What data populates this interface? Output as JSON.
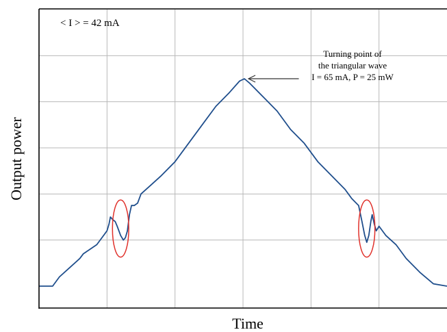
{
  "chart_data": {
    "type": "line",
    "title": "",
    "xlabel": "Time",
    "ylabel": "Output power",
    "xlim": [
      0,
      6
    ],
    "ylim": [
      0,
      6
    ],
    "grid": true,
    "grid_x": [
      1,
      2,
      3,
      4,
      5
    ],
    "grid_y": [
      1,
      2,
      3,
      4,
      5
    ],
    "series": [
      {
        "color": "#1f4e8c",
        "points": [
          [
            0.0,
            0.0
          ],
          [
            0.2,
            0.0
          ],
          [
            0.3,
            0.2
          ],
          [
            0.45,
            0.4
          ],
          [
            0.6,
            0.6
          ],
          [
            0.65,
            0.7
          ],
          [
            0.75,
            0.8
          ],
          [
            0.85,
            0.9
          ],
          [
            0.95,
            1.1
          ],
          [
            1.0,
            1.2
          ],
          [
            1.03,
            1.35
          ],
          [
            1.05,
            1.5
          ],
          [
            1.08,
            1.45
          ],
          [
            1.12,
            1.4
          ],
          [
            1.15,
            1.3
          ],
          [
            1.2,
            1.1
          ],
          [
            1.24,
            1.0
          ],
          [
            1.27,
            1.05
          ],
          [
            1.3,
            1.2
          ],
          [
            1.33,
            1.55
          ],
          [
            1.36,
            1.75
          ],
          [
            1.4,
            1.75
          ],
          [
            1.45,
            1.8
          ],
          [
            1.5,
            2.0
          ],
          [
            1.65,
            2.2
          ],
          [
            1.8,
            2.4
          ],
          [
            2.0,
            2.7
          ],
          [
            2.2,
            3.1
          ],
          [
            2.4,
            3.5
          ],
          [
            2.6,
            3.9
          ],
          [
            2.8,
            4.2
          ],
          [
            2.95,
            4.45
          ],
          [
            3.02,
            4.5
          ],
          [
            3.1,
            4.4
          ],
          [
            3.3,
            4.1
          ],
          [
            3.5,
            3.8
          ],
          [
            3.7,
            3.4
          ],
          [
            3.9,
            3.1
          ],
          [
            4.1,
            2.7
          ],
          [
            4.3,
            2.4
          ],
          [
            4.5,
            2.1
          ],
          [
            4.6,
            1.9
          ],
          [
            4.7,
            1.75
          ],
          [
            4.75,
            1.4
          ],
          [
            4.79,
            1.1
          ],
          [
            4.82,
            0.95
          ],
          [
            4.85,
            1.1
          ],
          [
            4.88,
            1.4
          ],
          [
            4.9,
            1.55
          ],
          [
            4.93,
            1.35
          ],
          [
            4.96,
            1.2
          ],
          [
            5.0,
            1.3
          ],
          [
            5.1,
            1.1
          ],
          [
            5.25,
            0.9
          ],
          [
            5.4,
            0.6
          ],
          [
            5.6,
            0.3
          ],
          [
            5.8,
            0.05
          ],
          [
            6.0,
            0.0
          ]
        ]
      }
    ],
    "highlights": [
      {
        "x": 1.2,
        "y": 1.25,
        "rx": 0.12,
        "ry": 0.62,
        "color": "#e0302a"
      },
      {
        "x": 4.82,
        "y": 1.25,
        "rx": 0.12,
        "ry": 0.62,
        "color": "#e0302a"
      }
    ],
    "annotations": [
      {
        "lines": [
          "Turning point of",
          "the triangular wave",
          "I = 65 mA, P = 25 mW"
        ],
        "point_to": [
          3.0,
          4.5
        ],
        "arrow_from": [
          3.7,
          4.5
        ]
      },
      {
        "text": "< I > = 42 mA"
      }
    ]
  }
}
